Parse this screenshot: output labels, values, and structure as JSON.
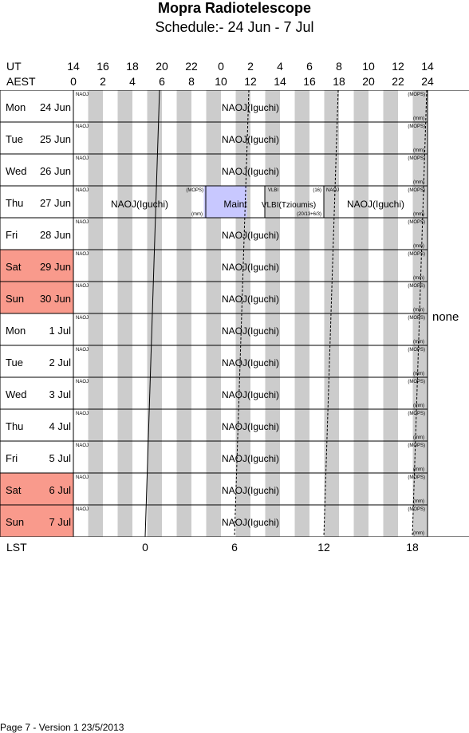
{
  "title": "Mopra Radiotelescope",
  "subtitle": "Schedule:- 24 Jun - 7  Jul",
  "axes": {
    "ut_label": "UT",
    "aest_label": "AEST",
    "lst_label": "LST",
    "ut_ticks": [
      "14",
      "16",
      "18",
      "20",
      "22",
      "0",
      "2",
      "4",
      "6",
      "8",
      "10",
      "12",
      "14"
    ],
    "aest_ticks": [
      "0",
      "2",
      "4",
      "6",
      "8",
      "10",
      "12",
      "14",
      "16",
      "18",
      "20",
      "22",
      "24"
    ],
    "lst_ticks": [
      "0",
      "6",
      "12",
      "18"
    ]
  },
  "days": [
    {
      "dow": "Mon",
      "date": "24 Jun",
      "weekend": false
    },
    {
      "dow": "Tue",
      "date": "25 Jun",
      "weekend": false
    },
    {
      "dow": "Wed",
      "date": "26 Jun",
      "weekend": false
    },
    {
      "dow": "Thu",
      "date": "27 Jun",
      "weekend": false
    },
    {
      "dow": "Fri",
      "date": "28 Jun",
      "weekend": false
    },
    {
      "dow": "Sat",
      "date": "29 Jun",
      "weekend": true
    },
    {
      "dow": "Sun",
      "date": "30 Jun",
      "weekend": true
    },
    {
      "dow": "Mon",
      "date": "1  Jul",
      "weekend": false
    },
    {
      "dow": "Tue",
      "date": "2  Jul",
      "weekend": false
    },
    {
      "dow": "Wed",
      "date": "3  Jul",
      "weekend": false
    },
    {
      "dow": "Thu",
      "date": "4  Jul",
      "weekend": false
    },
    {
      "dow": "Fri",
      "date": "5  Jul",
      "weekend": false
    },
    {
      "dow": "Sat",
      "date": "6  Jul",
      "weekend": true
    },
    {
      "dow": "Sun",
      "date": "7  Jul",
      "weekend": true
    }
  ],
  "blocks": {
    "full_day": {
      "tag": "NAOJ",
      "label": "NAOJ(Iguchi)",
      "right_top": "(MOPS)",
      "right_bottom": "(mm)"
    },
    "thu": [
      {
        "tag": "NAOJ",
        "label": "NAOJ(Iguchi)",
        "right_top": "(MOPS)",
        "right_bottom": "(mm)"
      },
      {
        "tag": "",
        "label": "Maint",
        "right_top": "",
        "right_bottom": ""
      },
      {
        "tag": "VLBI",
        "label": "VLBI(Tzioumis)",
        "right_top": "(16)",
        "right_bottom": "(20/13+6/3)"
      },
      {
        "tag": "NAOJ",
        "label": "NAOJ(Iguchi)",
        "right_top": "(MOPS)",
        "right_bottom": "(mm)"
      }
    ]
  },
  "side_note": "none",
  "footer": "Page 7 - Version 1  23/5/2013",
  "colors": {
    "weekend": "#f99a8c",
    "maint": "#c8c8ff",
    "stripe": "#cccccc"
  }
}
